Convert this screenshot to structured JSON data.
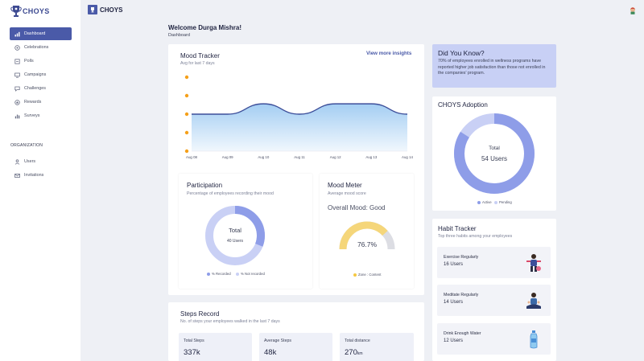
{
  "app": {
    "logo_text": "CHOYS",
    "header_title": "CHOYS"
  },
  "sidebar": {
    "items": [
      {
        "label": "Dashboard",
        "icon": "bar-chart-icon",
        "active": true
      },
      {
        "label": "Celebrations",
        "icon": "gift-icon",
        "active": false
      },
      {
        "label": "Polls",
        "icon": "poll-icon",
        "active": false
      },
      {
        "label": "Campaigns",
        "icon": "monitor-icon",
        "active": false
      },
      {
        "label": "Challenges",
        "icon": "chat-icon",
        "active": false
      },
      {
        "label": "Rewards",
        "icon": "reward-icon",
        "active": false
      },
      {
        "label": "Surveys",
        "icon": "survey-icon",
        "active": false
      }
    ],
    "org_section_label": "ORGANIZATION",
    "org_items": [
      {
        "label": "Users",
        "icon": "user-icon"
      },
      {
        "label": "Invitations",
        "icon": "mail-icon"
      }
    ]
  },
  "page": {
    "welcome": "Welcome Durga Mishra!",
    "breadcrumb": "Dashboard"
  },
  "mood_tracker": {
    "title": "Mood Tracker",
    "subtitle": "Avg for last 7 days",
    "link": "View more insights",
    "colors": {
      "line": "#3d4f9a",
      "fill": "#9fcbf2",
      "emoji": "#f5a01a"
    }
  },
  "chart_data": {
    "type": "area",
    "x": [
      "Aug 08",
      "Aug 09",
      "Aug 10",
      "Aug 11",
      "Aug 12",
      "Aug 13",
      "Aug 14"
    ],
    "values": [
      2.5,
      2.5,
      3.2,
      2.5,
      3.2,
      3.2,
      2.5
    ],
    "ylim": [
      0,
      5
    ],
    "y_markers": 5,
    "grid": false,
    "legend": "none"
  },
  "participation": {
    "title": "Participation",
    "subtitle": "Percentage of employees recording their mood",
    "total_label": "Total",
    "total_value": "40 Users",
    "recorded_fraction": 0.31,
    "legend": [
      "% Recorded",
      "% Not recorded"
    ],
    "colors": {
      "recorded": "#8e9de8",
      "not_recorded": "#c9d0f5"
    }
  },
  "mood_meter": {
    "title": "Mood Meter",
    "subtitle": "Average mood score",
    "overall_prefix": "Overall Mood:",
    "overall_value": "Good",
    "percent_text": "76.7%",
    "fraction": 0.767,
    "legend": "Zone : Content",
    "colors": {
      "filled": "#f5d67a",
      "empty": "#dcdde3",
      "legend": "#f5c842"
    }
  },
  "did_you_know": {
    "title": "Did You Know?",
    "text": "70% of employees enrolled in wellness programs have reported higher job satisfaction than those not enrolled in the companies' program.",
    "color": "#c8d0f5"
  },
  "adoption": {
    "title": "CHOYS Adoption",
    "total_label": "Total",
    "total_value": "54 Users",
    "active_fraction": 0.84,
    "legend": [
      "Active",
      "Pending"
    ],
    "colors": {
      "active": "#8e9de8",
      "pending": "#c9d0f5"
    }
  },
  "habit_tracker": {
    "title": "Habit Tracker",
    "subtitle": "Top three habits among your employees",
    "items": [
      {
        "name": "Exercise Regularly",
        "users": "16 Users",
        "icon": "exercise-icon"
      },
      {
        "name": "Meditate Regularly",
        "users": "14 Users",
        "icon": "meditation-icon"
      },
      {
        "name": "Drink Enough Water",
        "users": "12 Users",
        "icon": "water-bottle-icon"
      }
    ]
  },
  "steps": {
    "title": "Steps Record",
    "subtitle": "No. of steps your employees walked in the last 7 days",
    "stats": [
      {
        "label": "Total Steps",
        "value": "337k",
        "unit": ""
      },
      {
        "label": "Average Steps",
        "value": "48k",
        "unit": ""
      },
      {
        "label": "Total distance",
        "value": "270",
        "unit": "km"
      }
    ]
  }
}
